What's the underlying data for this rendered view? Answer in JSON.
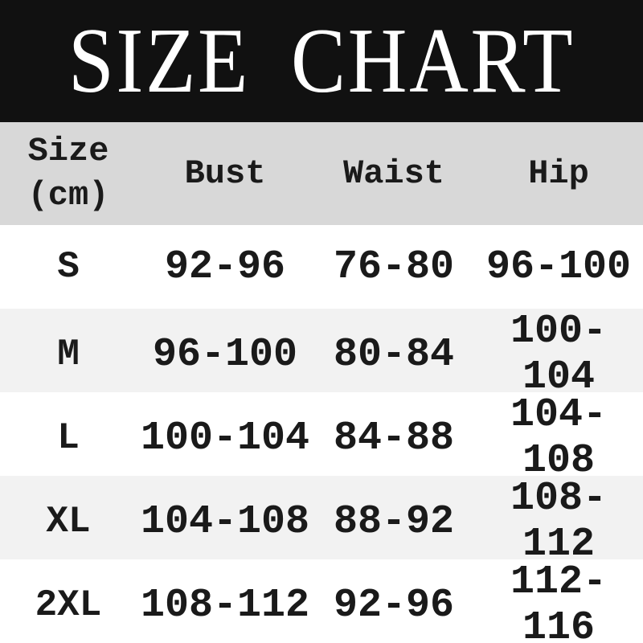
{
  "banner": {
    "title": "SIZE CHART"
  },
  "table": {
    "header": {
      "size_line1": "Size",
      "size_line2": "(cm)",
      "bust": "Bust",
      "waist": "Waist",
      "hip": "Hip"
    },
    "rows": [
      {
        "size": "S",
        "bust": "92-96",
        "waist": "76-80",
        "hip": "96-100"
      },
      {
        "size": "M",
        "bust": "96-100",
        "waist": "80-84",
        "hip": "100-104"
      },
      {
        "size": "L",
        "bust": "100-104",
        "waist": "84-88",
        "hip": "104-108"
      },
      {
        "size": "XL",
        "bust": "104-108",
        "waist": "88-92",
        "hip": "108-112"
      },
      {
        "size": "2XL",
        "bust": "108-112",
        "waist": "92-96",
        "hip": "112-116"
      }
    ]
  },
  "colors": {
    "banner_bg": "#111111",
    "header_bg": "#d8d8d8",
    "row_alt_bg": "#f2f2f2",
    "row_bg": "#ffffff",
    "text": "#1a1a1a",
    "title_text": "#ffffff"
  },
  "chart_data": {
    "type": "table",
    "title": "SIZE CHART",
    "unit": "cm",
    "columns": [
      "Size (cm)",
      "Bust",
      "Waist",
      "Hip"
    ],
    "rows": [
      [
        "S",
        "92-96",
        "76-80",
        "96-100"
      ],
      [
        "M",
        "96-100",
        "80-84",
        "100-104"
      ],
      [
        "L",
        "100-104",
        "84-88",
        "104-108"
      ],
      [
        "XL",
        "104-108",
        "88-92",
        "108-112"
      ],
      [
        "2XL",
        "108-112",
        "92-96",
        "112-116"
      ]
    ]
  }
}
